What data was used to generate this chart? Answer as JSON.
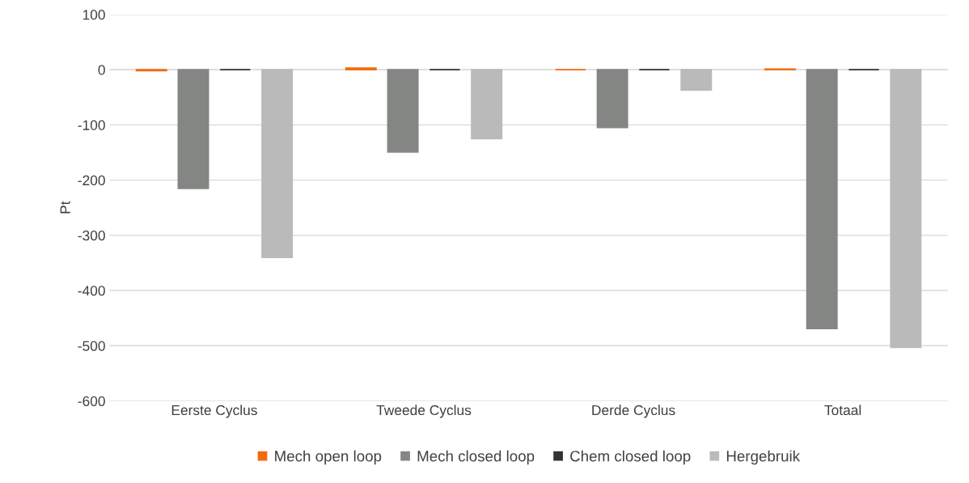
{
  "chart_data": {
    "type": "bar",
    "ylabel": "Pt",
    "categories": [
      "Eerste Cyclus",
      "Tweede Cyclus",
      "Derde Cyclus",
      "Totaal"
    ],
    "series": [
      {
        "name": "Mech open loop",
        "color": "#f26b0f",
        "values": [
          -2,
          3,
          0,
          1
        ]
      },
      {
        "name": "Mech closed loop",
        "color": "#848684",
        "values": [
          -215,
          -149,
          -105,
          -469
        ]
      },
      {
        "name": "Chem closed loop",
        "color": "#333333",
        "values": [
          0,
          0,
          0,
          0
        ]
      },
      {
        "name": "Hergebruik",
        "color": "#bababa",
        "values": [
          -340,
          -125,
          -37,
          -503
        ]
      }
    ],
    "ylim": [
      -600,
      100
    ],
    "yticks": [
      -600,
      -500,
      -400,
      -300,
      -200,
      -100,
      0,
      100
    ],
    "grid": "y",
    "legend": "bottom"
  }
}
